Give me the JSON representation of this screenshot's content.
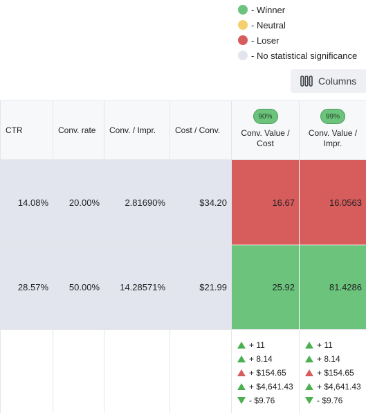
{
  "legend": [
    {
      "label": "- Winner",
      "color": "#6cc47c"
    },
    {
      "label": "- Neutral",
      "color": "#f6cf6e"
    },
    {
      "label": "- Loser",
      "color": "#d75c5c"
    },
    {
      "label": "- No statistical significance",
      "color": "#e3e5ee"
    }
  ],
  "toolbar": {
    "columns_label": "Columns",
    "columns_icon": "columns-icon"
  },
  "table": {
    "headers": {
      "ctr": "CTR",
      "conv_rate": "Conv. rate",
      "conv_impr": "Conv. / Impr.",
      "cost_conv": "Cost / Conv.",
      "conv_value_cost": {
        "badge": "90%",
        "label": "Conv. Value / Cost"
      },
      "conv_value_impr": {
        "badge": "99%",
        "label": "Conv. Value / Impr."
      }
    },
    "rows": [
      {
        "ctr": "14.08%",
        "conv_rate": "20.00%",
        "conv_impr": "2.81690%",
        "cost_conv": "$34.20",
        "conv_value_cost": "16.67",
        "conv_value_impr": "16.0563",
        "status_a": "loser",
        "status_b": "loser"
      },
      {
        "ctr": "28.57%",
        "conv_rate": "50.00%",
        "conv_impr": "14.28571%",
        "cost_conv": "$21.99",
        "conv_value_cost": "25.92",
        "conv_value_impr": "81.4286",
        "status_a": "winner",
        "status_b": "winner"
      }
    ],
    "deltas": [
      {
        "text": "+ 11",
        "direction": "up",
        "color": "green"
      },
      {
        "text": "+ 8.14",
        "direction": "up",
        "color": "green"
      },
      {
        "text": "+ $154.65",
        "direction": "up",
        "color": "red"
      },
      {
        "text": "+ $4,641.43",
        "direction": "up",
        "color": "green"
      },
      {
        "text": "- $9.76",
        "direction": "down",
        "color": "green"
      }
    ]
  }
}
